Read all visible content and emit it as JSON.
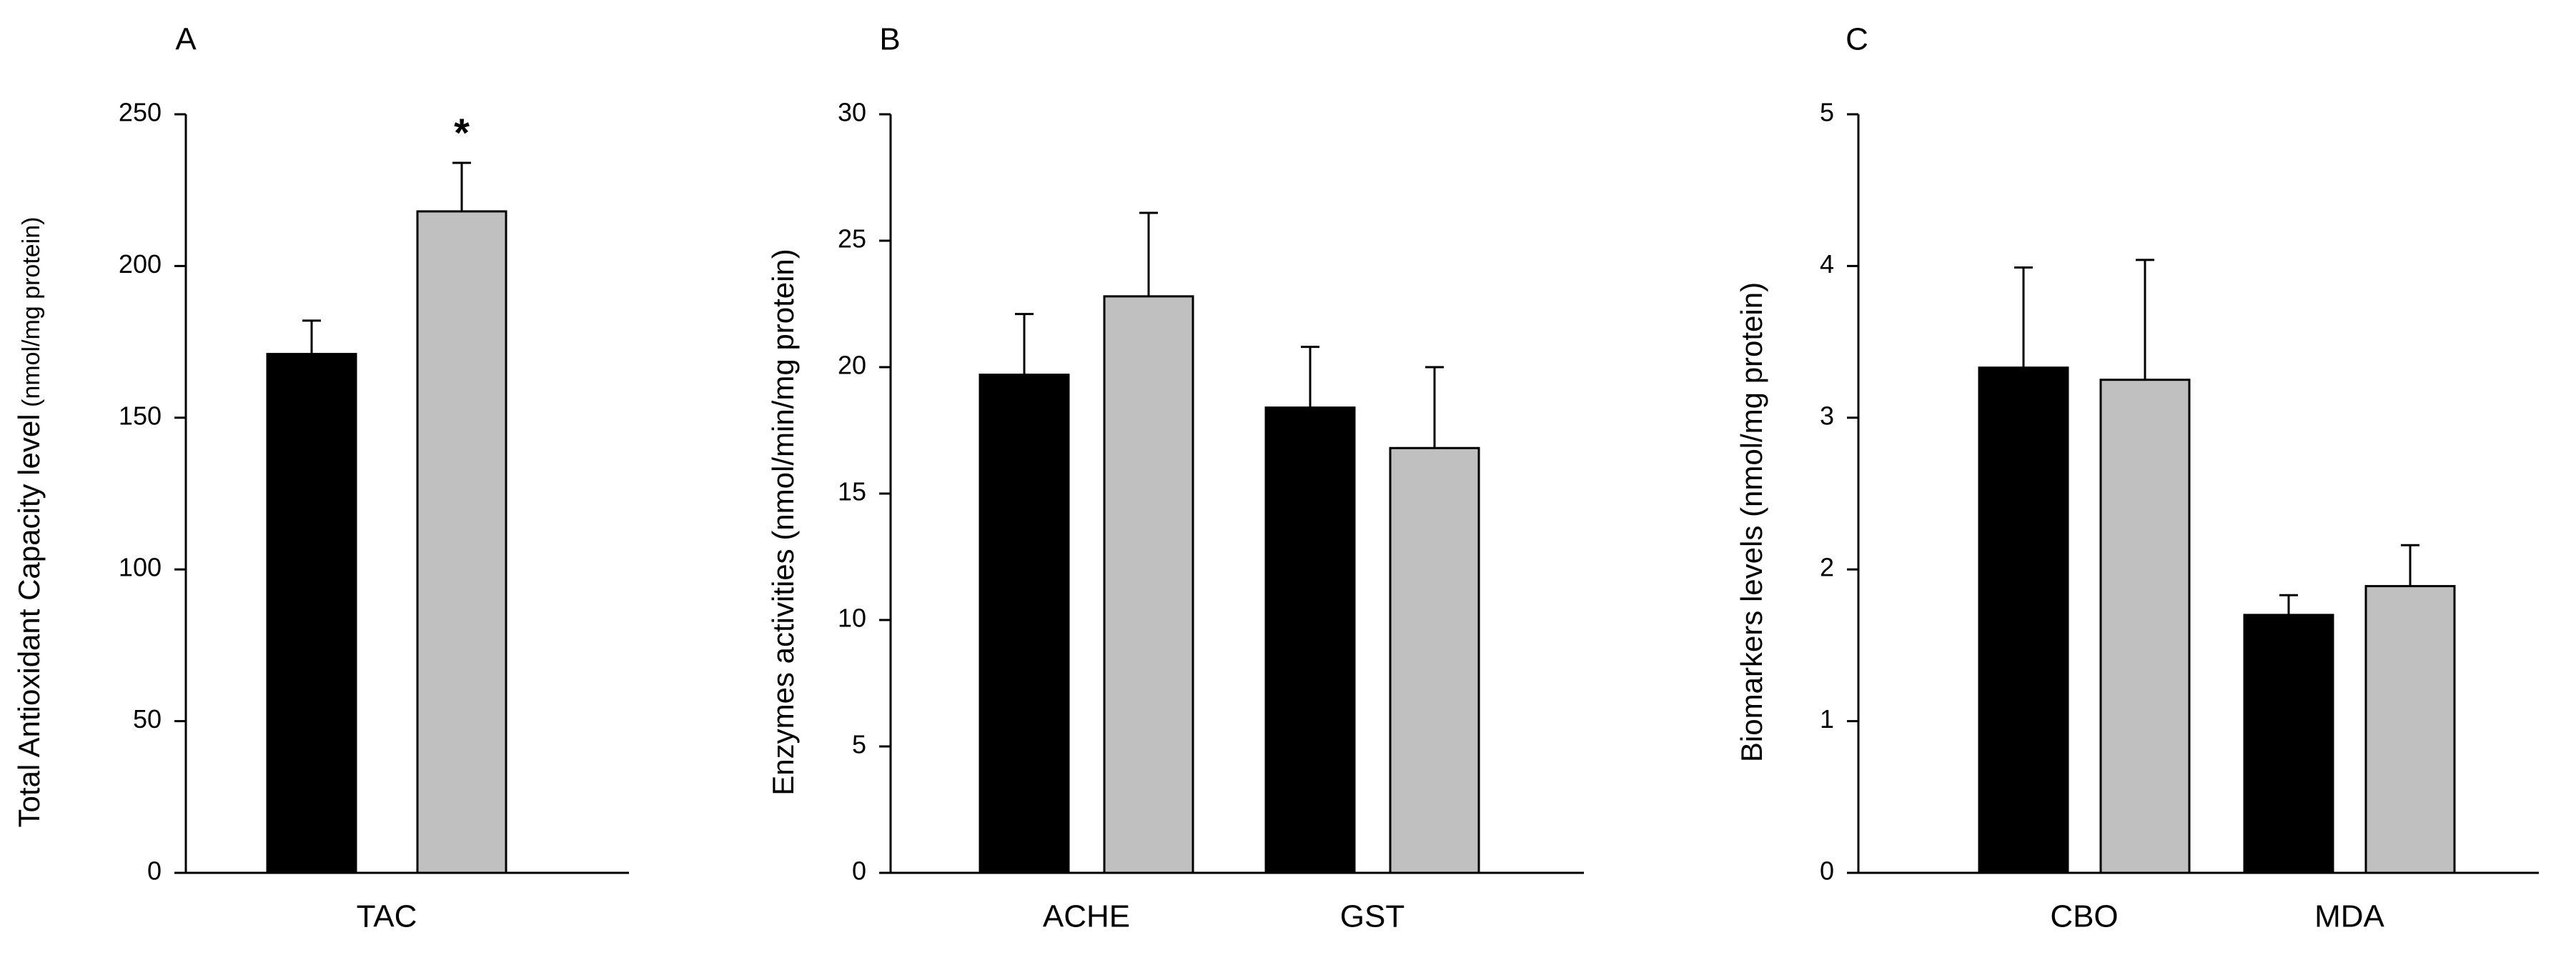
{
  "chart_data": [
    {
      "type": "bar",
      "panel_label": "A",
      "ylabel_main": "Total Antioxidant Capacity level",
      "ylabel_unit": "(nmol/mg protein)",
      "ylim": [
        0,
        250
      ],
      "yticks": [
        0,
        50,
        100,
        150,
        200,
        250
      ],
      "categories": [
        "TAC"
      ],
      "series": [
        {
          "values": [
            171
          ],
          "errors": [
            11
          ],
          "color": "#000000"
        },
        {
          "values": [
            218
          ],
          "errors": [
            16
          ],
          "color": "#c0c0c0",
          "annotations": [
            "*"
          ]
        }
      ]
    },
    {
      "type": "bar",
      "panel_label": "B",
      "ylabel_main": "Enzymes activities (nmol/min/mg protein)",
      "ylabel_unit": "",
      "ylim": [
        0,
        30
      ],
      "yticks": [
        0,
        5,
        10,
        15,
        20,
        25,
        30
      ],
      "categories": [
        "ACHE",
        "GST"
      ],
      "series": [
        {
          "values": [
            19.7,
            18.4
          ],
          "errors": [
            2.4,
            2.4
          ],
          "color": "#000000"
        },
        {
          "values": [
            22.8,
            16.8
          ],
          "errors": [
            3.3,
            3.2
          ],
          "color": "#c0c0c0"
        }
      ]
    },
    {
      "type": "bar",
      "panel_label": "C",
      "ylabel_main": "Biomarkers levels (nmol/mg protein)",
      "ylabel_unit": "",
      "ylim": [
        0,
        5
      ],
      "yticks": [
        0,
        1,
        2,
        3,
        4,
        5
      ],
      "categories": [
        "CBO",
        "MDA"
      ],
      "series": [
        {
          "values": [
            3.33,
            1.7
          ],
          "errors": [
            0.66,
            0.13
          ],
          "color": "#000000"
        },
        {
          "values": [
            3.25,
            1.89
          ],
          "errors": [
            0.79,
            0.27
          ],
          "color": "#c0c0c0"
        }
      ]
    }
  ]
}
